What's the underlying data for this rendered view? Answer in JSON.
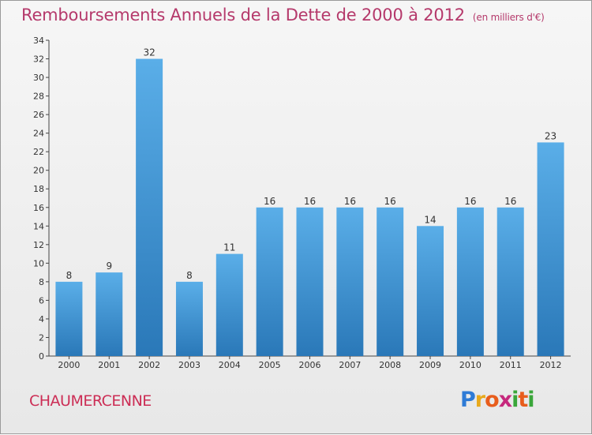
{
  "header": {
    "title": "Remboursements Annuels de la Dette de 2000 à 2012",
    "subtitle": "(en milliers d'€)"
  },
  "footer": {
    "commune": "CHAUMERCENNE",
    "logo": {
      "letters": [
        "P",
        "r",
        "o",
        "x",
        "i",
        "t",
        "i"
      ],
      "colors": [
        "#2e7bd6",
        "#e8a91c",
        "#e85d1c",
        "#c6287d",
        "#3aa63a",
        "#e85d1c",
        "#3aa63a"
      ]
    }
  },
  "colors": {
    "bar_top": "#5aaee8",
    "bar_bottom": "#2a78b8",
    "title": "#b5396b",
    "commune": "#cc2d55"
  },
  "chart_data": {
    "type": "bar",
    "categories": [
      "2000",
      "2001",
      "2002",
      "2003",
      "2004",
      "2005",
      "2006",
      "2007",
      "2008",
      "2009",
      "2010",
      "2011",
      "2012"
    ],
    "values": [
      8,
      9,
      32,
      8,
      11,
      16,
      16,
      16,
      16,
      14,
      16,
      16,
      23
    ],
    "ylim": [
      0,
      34
    ],
    "yticks": [
      0,
      2,
      4,
      6,
      8,
      10,
      12,
      14,
      16,
      18,
      20,
      22,
      24,
      26,
      28,
      30,
      32,
      34
    ],
    "grid": false,
    "data_labels": true
  }
}
